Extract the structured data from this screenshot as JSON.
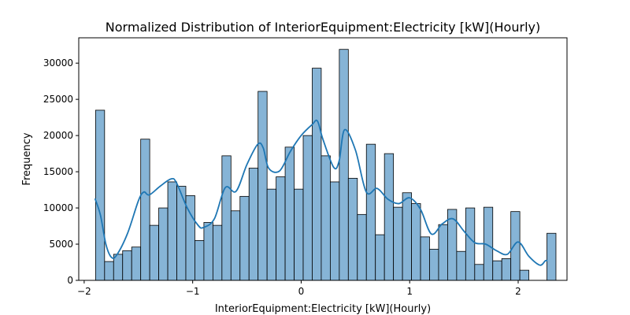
{
  "chart_data": {
    "type": "bar",
    "title": "Normalized Distribution of InteriorEquipment:Electricity [kW](Hourly)",
    "xlabel": "InteriorEquipment:Electricity [kW](Hourly)",
    "ylabel": "Frequency",
    "xlim": [
      -2.05,
      2.45
    ],
    "ylim": [
      0,
      33500
    ],
    "xticks": [
      -2,
      -1,
      0,
      1,
      2
    ],
    "xtick_labels": [
      "−2",
      "−1",
      "0",
      "1",
      "2"
    ],
    "yticks": [
      0,
      5000,
      10000,
      15000,
      20000,
      25000,
      30000
    ],
    "ytick_labels": [
      "0",
      "5000",
      "10000",
      "15000",
      "20000",
      "25000",
      "30000"
    ],
    "grid": false,
    "bin_start": -1.895,
    "bin_width": 0.0832,
    "values": [
      23500,
      2600,
      3600,
      4100,
      4600,
      19500,
      7600,
      10000,
      13600,
      13000,
      11700,
      5500,
      8000,
      7600,
      17200,
      9600,
      11600,
      15500,
      26100,
      12600,
      14300,
      18400,
      12600,
      20000,
      29300,
      17200,
      13600,
      31900,
      14100,
      9100,
      18800,
      6300,
      17500,
      10100,
      12100,
      10600,
      6000,
      4300,
      7700,
      9800,
      4000,
      10000,
      2200,
      10100,
      2700,
      3000,
      9500,
      1400,
      0,
      0,
      6500
    ],
    "series": [
      {
        "name": "",
        "style": "kde",
        "x": [
          -1.9,
          -1.85,
          -1.8,
          -1.75,
          -1.7,
          -1.6,
          -1.5,
          -1.45,
          -1.4,
          -1.3,
          -1.2,
          -1.15,
          -1.05,
          -0.95,
          -0.9,
          -0.8,
          -0.7,
          -0.6,
          -0.5,
          -0.4,
          -0.35,
          -0.3,
          -0.2,
          -0.1,
          0.0,
          0.1,
          0.15,
          0.2,
          0.3,
          0.35,
          0.4,
          0.5,
          0.6,
          0.7,
          0.8,
          0.9,
          1.0,
          1.1,
          1.2,
          1.3,
          1.4,
          1.5,
          1.6,
          1.7,
          1.8,
          1.9,
          2.0,
          2.1,
          2.2,
          2.25,
          2.27
        ],
        "y": [
          11300,
          9000,
          5000,
          3200,
          3500,
          6500,
          11000,
          12200,
          11800,
          13000,
          14000,
          13500,
          10000,
          7600,
          7300,
          8500,
          12800,
          12300,
          16000,
          18800,
          18300,
          15500,
          15100,
          17800,
          20000,
          21500,
          22000,
          19500,
          15600,
          16500,
          20800,
          18000,
          12200,
          12700,
          11200,
          10600,
          11400,
          9800,
          6400,
          7800,
          8500,
          6800,
          5200,
          5000,
          4100,
          3600,
          5300,
          3300,
          2100,
          2700,
          2700
        ]
      }
    ],
    "colors": {
      "bar_fill": "#86b4d6",
      "bar_edge": "#000000",
      "kde_line": "#1f77b4"
    }
  }
}
